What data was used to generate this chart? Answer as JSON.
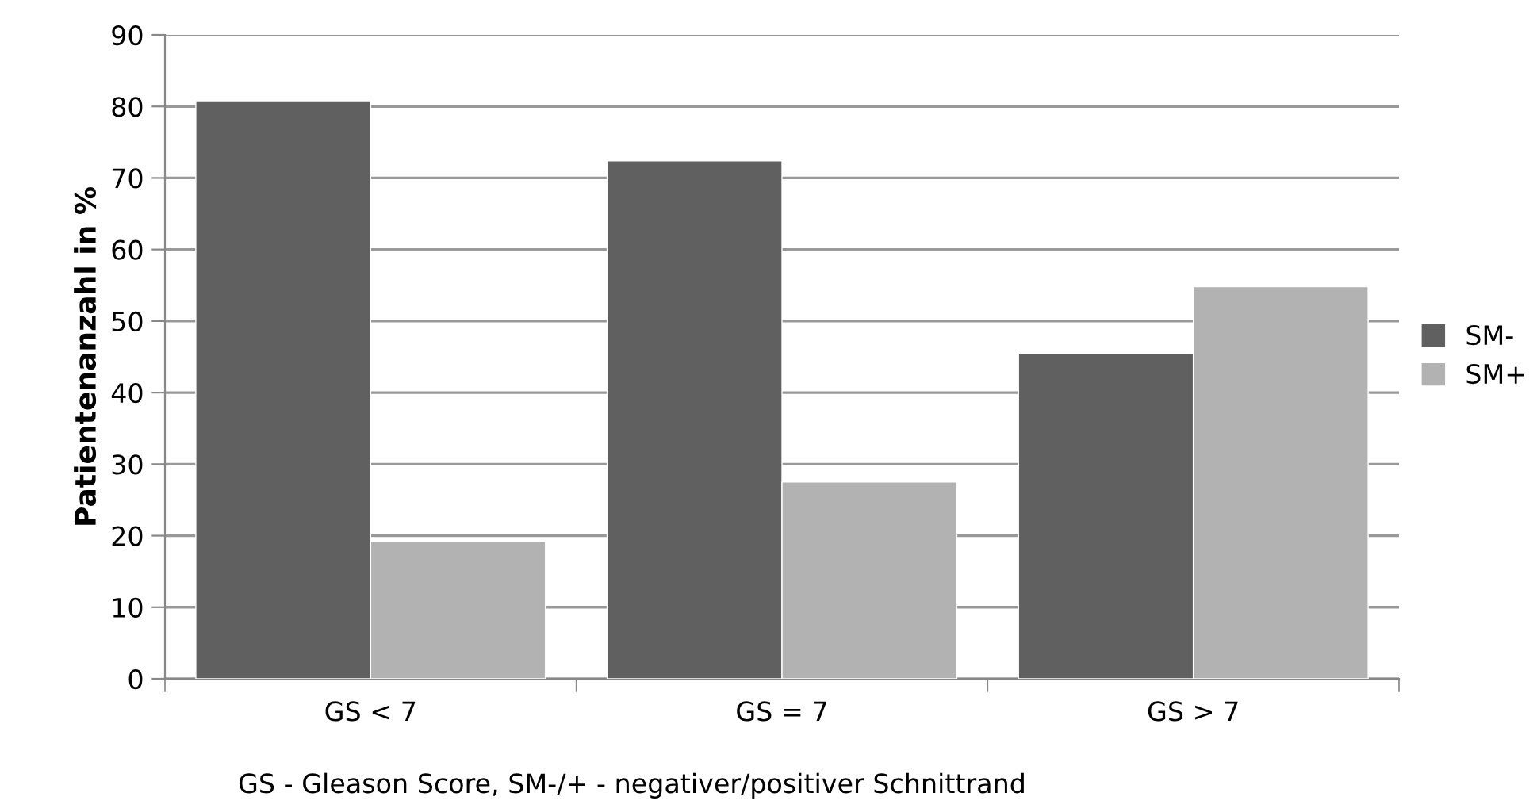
{
  "chart_data": {
    "type": "bar",
    "ylabel": "Patientenanzahl in %",
    "categories": [
      "GS < 7",
      "GS = 7",
      "GS > 7"
    ],
    "series": [
      {
        "name": "SM-",
        "color": "#606060",
        "values": [
          80.8,
          72.4,
          45.4
        ]
      },
      {
        "name": "SM+",
        "color": "#b2b2b2",
        "values": [
          19.2,
          27.5,
          54.8
        ]
      }
    ],
    "ylim": [
      0,
      90
    ],
    "yticks": [
      0,
      10,
      20,
      30,
      40,
      50,
      60,
      70,
      80,
      90
    ],
    "grid": "y",
    "legend": "right",
    "annotations": [
      "GS - Gleason Score, SM-/+ - negativer/positiver Schnittrand"
    ]
  }
}
